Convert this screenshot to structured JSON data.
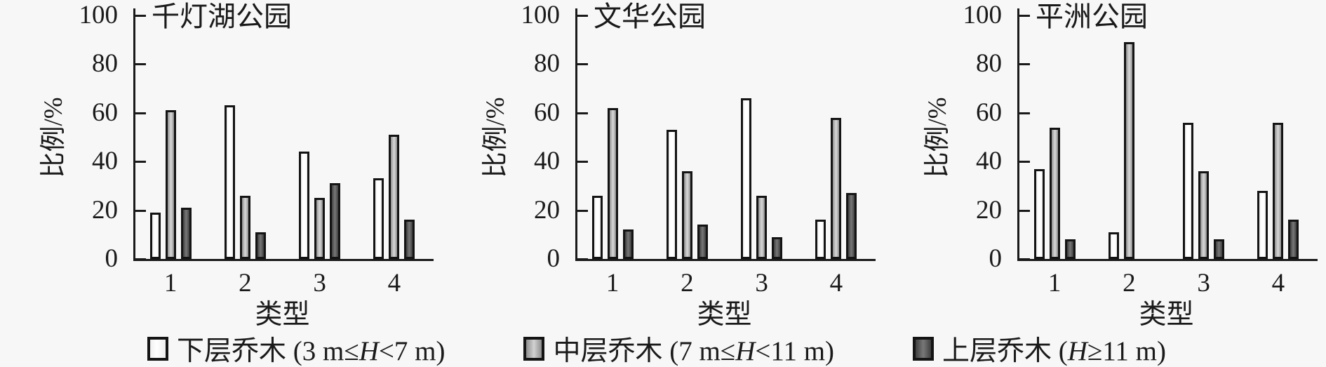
{
  "colors": {
    "background": "#f7f7f7",
    "ink": "#1a1a1a",
    "bar_lower_fill": "#fdfdfd",
    "bar_middle_fill": "#b0b0b0",
    "bar_upper_fill": "#5a5a5a",
    "bar_outline": "#141414"
  },
  "legend": {
    "items": [
      {
        "pre": "下层乔木 (3 m≤",
        "var": "H",
        "post": "<7 m)"
      },
      {
        "pre": "中层乔木 (7 m≤",
        "var": "H",
        "post": "<11 m)"
      },
      {
        "pre": "上层乔木 (",
        "var": "H",
        "post": "≥11 m)"
      }
    ]
  },
  "chart_data": [
    {
      "type": "bar",
      "title": "千灯湖公园",
      "categories": [
        "1",
        "2",
        "3",
        "4"
      ],
      "xlabel": "类型",
      "ylabel": "比例/%",
      "ylim": [
        0,
        100
      ],
      "yticks": [
        0,
        20,
        40,
        60,
        80,
        100
      ],
      "grid": false,
      "legend_position": "bottom",
      "series": [
        {
          "name": "下层乔木 (3 m≤H<7 m)",
          "values": [
            19,
            63,
            44,
            33
          ]
        },
        {
          "name": "中层乔木 (7 m≤H<11 m)",
          "values": [
            61,
            26,
            25,
            51
          ]
        },
        {
          "name": "上层乔木 (H≥11 m)",
          "values": [
            21,
            11,
            31,
            16
          ]
        }
      ]
    },
    {
      "type": "bar",
      "title": "文华公园",
      "categories": [
        "1",
        "2",
        "3",
        "4"
      ],
      "xlabel": "类型",
      "ylabel": "比例/%",
      "ylim": [
        0,
        100
      ],
      "yticks": [
        0,
        20,
        40,
        60,
        80,
        100
      ],
      "grid": false,
      "legend_position": "bottom",
      "series": [
        {
          "name": "下层乔木 (3 m≤H<7 m)",
          "values": [
            26,
            53,
            66,
            16
          ]
        },
        {
          "name": "中层乔木 (7 m≤H<11 m)",
          "values": [
            62,
            36,
            26,
            58
          ]
        },
        {
          "name": "上层乔木 (H≥11 m)",
          "values": [
            12,
            14,
            9,
            27
          ]
        }
      ]
    },
    {
      "type": "bar",
      "title": "平洲公园",
      "categories": [
        "1",
        "2",
        "3",
        "4"
      ],
      "xlabel": "类型",
      "ylabel": "比例/%",
      "ylim": [
        0,
        100
      ],
      "yticks": [
        0,
        20,
        40,
        60,
        80,
        100
      ],
      "grid": false,
      "legend_position": "bottom",
      "series": [
        {
          "name": "下层乔木 (3 m≤H<7 m)",
          "values": [
            37,
            11,
            56,
            28
          ]
        },
        {
          "name": "中层乔木 (7 m≤H<11 m)",
          "values": [
            54,
            89,
            36,
            56
          ]
        },
        {
          "name": "上层乔木 (H≥11 m)",
          "values": [
            8,
            0,
            8,
            16
          ]
        }
      ]
    }
  ]
}
